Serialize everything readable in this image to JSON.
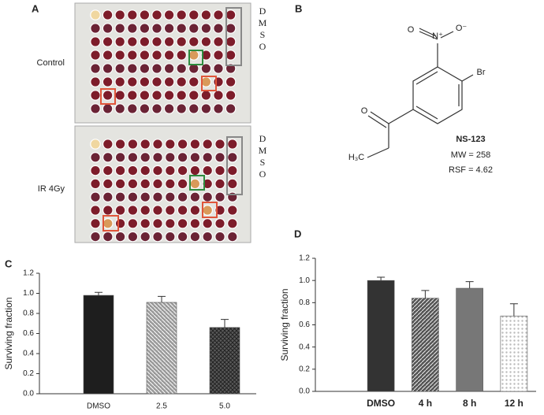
{
  "panels": {
    "a": "A",
    "b": "B",
    "c": "C",
    "d": "D"
  },
  "plate": {
    "rows": [
      {
        "label": "Control",
        "tag": [
          "D",
          "M",
          "S",
          "O"
        ]
      },
      {
        "label": "IR 4Gy",
        "tag": [
          "D",
          "M",
          "S",
          "O"
        ]
      }
    ]
  },
  "compound": {
    "atoms": [
      "O",
      "N⁺",
      "O⁻",
      "Br",
      "O",
      "H₃C"
    ],
    "name": "NS-123",
    "mw": "MW = 258",
    "rsf": "RSF = 4.62"
  },
  "chart_data": [
    {
      "type": "bar",
      "ylabel": "Surviving fraction",
      "categories": [
        "DMSO",
        "2.5",
        "5.0"
      ],
      "values": [
        0.98,
        0.91,
        0.66
      ],
      "errors": [
        0.03,
        0.06,
        0.08
      ],
      "colors": [
        "#1e1e1e",
        "#9a9a9a",
        "#5a5a5a"
      ],
      "hatch": [
        "solid",
        "back",
        "cross"
      ],
      "ylim": [
        0,
        1.2
      ],
      "yticks": [
        {
          "value": 0,
          "label": "0.0"
        },
        0.2,
        0.4,
        0.6,
        0.8,
        {
          "value": 1,
          "label": "1.0"
        },
        1.2
      ]
    },
    {
      "type": "bar",
      "ylabel": "Surviving fraction",
      "categories": [
        "DMSO",
        "4 h",
        "8 h",
        "12 h"
      ],
      "values": [
        1.0,
        0.84,
        0.93,
        0.68
      ],
      "errors": [
        0.03,
        0.07,
        0.06,
        0.11
      ],
      "colors": [
        "#333333",
        "#555555",
        "#777777",
        "#bbbbbb"
      ],
      "hatch": [
        "solid",
        "fwd",
        "solid",
        "dots"
      ],
      "ylim": [
        0,
        1.2
      ],
      "yticks": [
        {
          "value": 0,
          "label": "0.0"
        },
        0.2,
        0.4,
        0.6,
        0.8,
        {
          "value": 1,
          "label": "1.0"
        },
        1.2
      ]
    }
  ]
}
